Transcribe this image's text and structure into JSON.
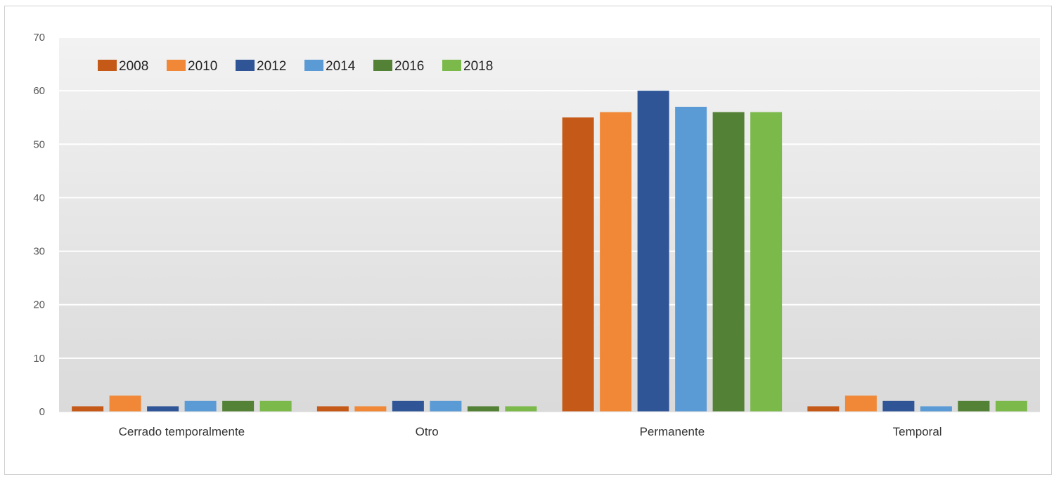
{
  "chart_data": {
    "type": "bar",
    "categories": [
      "Cerrado temporalmente",
      "Otro",
      "Permanente",
      "Temporal"
    ],
    "series": [
      {
        "name": "2008",
        "color": "#C55A18",
        "values": [
          1,
          1,
          55,
          1
        ]
      },
      {
        "name": "2010",
        "color": "#F08837",
        "values": [
          3,
          1,
          56,
          3
        ]
      },
      {
        "name": "2012",
        "color": "#2F5597",
        "values": [
          1,
          2,
          60,
          2
        ]
      },
      {
        "name": "2014",
        "color": "#5B9BD5",
        "values": [
          2,
          2,
          57,
          1
        ]
      },
      {
        "name": "2016",
        "color": "#538135",
        "values": [
          2,
          1,
          56,
          2
        ]
      },
      {
        "name": "2018",
        "color": "#7AB94A",
        "values": [
          2,
          1,
          56,
          2
        ]
      }
    ],
    "ylim": [
      0,
      70
    ],
    "yticks": [
      "0",
      "10",
      "20",
      "30",
      "40",
      "50",
      "60",
      "70"
    ],
    "grid": true,
    "legend_position": "top-left",
    "title": "",
    "xlabel": "",
    "ylabel": ""
  }
}
